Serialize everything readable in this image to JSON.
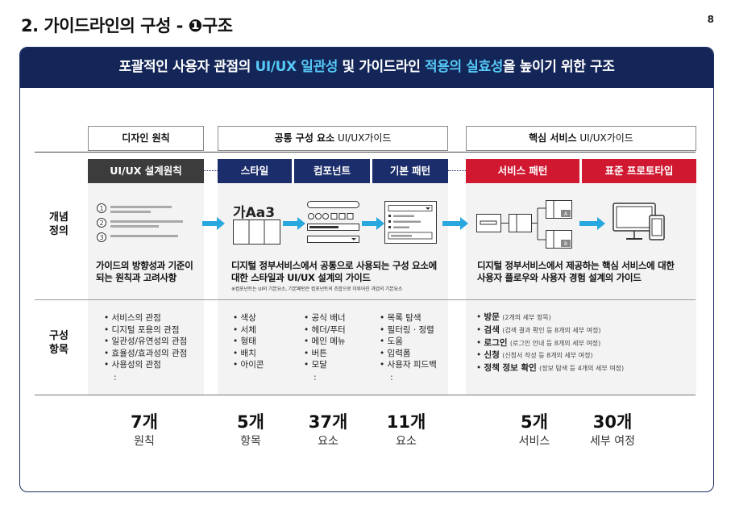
{
  "slide": {
    "title": "2. 가이드라인의 구성 - ❶구조",
    "page_number": "8"
  },
  "banner": {
    "part1": "포괄적인 사용자 관점의 ",
    "highlight1": "UI/UX 일관성",
    "part2": " 및 가이드라인 ",
    "highlight2": "적용의 실효성",
    "part3": "을 높이기 위한 구조"
  },
  "headers": {
    "design_principles": "디자인 원칙",
    "common_bold": "공통 구성 요소",
    "common_thin": " UI/UX가이드",
    "core_bold": "핵심 서비스",
    "core_thin": " UI/UX가이드"
  },
  "tabs": {
    "design": "UI/UX 설계원칙",
    "style": "스타일",
    "component": "컴포넌트",
    "pattern": "기본 패턴",
    "service": "서비스 패턴",
    "prototype": "표준 프로토타입"
  },
  "row_labels": {
    "definition_1": "개념",
    "definition_2": "정의",
    "items_1": "구성",
    "items_2": "항목"
  },
  "illustrations": {
    "style_sample": "가Aa3",
    "marker_a": "A",
    "marker_b": "B",
    "numbers": [
      "1",
      "2",
      "3"
    ]
  },
  "definitions": {
    "design_1": "가이드의 방향성과 기준이",
    "design_2": "되는 원칙과 고려사항",
    "common_1": "디지털 정부서비스에서 공통으로 사용되는 구성 요소에",
    "common_2": "대한 스타일과 UI/UX 설계의 가이드",
    "common_note": "※컴포넌트는 UI의 기본요소, 기본패턴은 컴포넌트의 조합으로 이루어진 과업의 기본요소",
    "core_1": "디지털 정부서비스에서 제공하는 핵심 서비스에 대한",
    "core_2": "사용자 플로우와 사용자 경험 설계의 가이드"
  },
  "items": {
    "design": [
      "서비스의 관점",
      "디지털 포용의 관점",
      "일관성/유연성의 관점",
      "효율성/효과성의 관점",
      "사용성의 관점"
    ],
    "style": [
      "색상",
      "서체",
      "형태",
      "배치",
      "아이콘"
    ],
    "component": [
      "공식 배너",
      "헤더/푸터",
      "메인 메뉴",
      "버튼",
      "모달"
    ],
    "pattern": [
      "목록 탐색",
      "필터링 · 정렬",
      "도움",
      "입력폼",
      "사용자 피드백"
    ],
    "service": [
      {
        "name": "방문",
        "detail": "(2개의 세부 항목)"
      },
      {
        "name": "검색",
        "detail": "(검색 결과 확인 등 8개의 세부 여정)"
      },
      {
        "name": "로그인",
        "detail": "(로그인 안내 등 8개의 세부 여정)"
      },
      {
        "name": "신청",
        "detail": "(신청서 작성 등 8개의 세부 여정)"
      },
      {
        "name": "정책 정보 확인",
        "detail": "(정보 탐색 등 4개의 세부 여정)"
      }
    ],
    "ellipsis": ":"
  },
  "totals": [
    {
      "count": "7개",
      "unit": "원칙"
    },
    {
      "count": "5개",
      "unit": "항목"
    },
    {
      "count": "37개",
      "unit": "요소"
    },
    {
      "count": "11개",
      "unit": "요소"
    },
    {
      "count": "5개",
      "unit": "서비스"
    },
    {
      "count": "30개",
      "unit": "세부 여정"
    }
  ],
  "colors": {
    "banner_bg": "#142658",
    "highlight": "#56c8f5",
    "tab_dark": "#3c3c3c",
    "tab_navy": "#1b2d6b",
    "tab_red": "#d01830",
    "arrow": "#29a8e0"
  }
}
